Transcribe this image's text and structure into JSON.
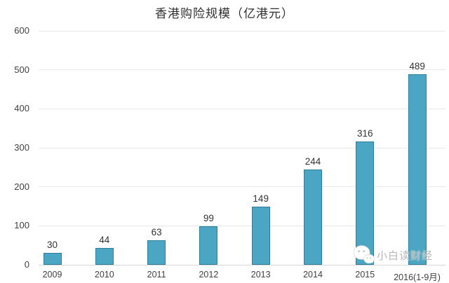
{
  "chart_data": {
    "type": "bar",
    "title": "香港购险规模（亿港元）",
    "categories": [
      "2009",
      "2010",
      "2011",
      "2012",
      "2013",
      "2014",
      "2015",
      "2016(1-9月)"
    ],
    "values": [
      30,
      44,
      63,
      99,
      149,
      244,
      316,
      489
    ],
    "xlabel": "",
    "ylabel": "",
    "ylim": [
      0,
      600
    ],
    "yticks": [
      0,
      100,
      200,
      300,
      400,
      500,
      600
    ],
    "grid": true,
    "legend": "none",
    "bar_fill_color": "#4aa6c3",
    "bar_border_color": "#2e7d9c",
    "gridline_color": "#e7e7e7",
    "baseline_color": "#d7d7d7",
    "value_label_color": "#333333",
    "tick_label_color": "#404040"
  },
  "watermark": {
    "text": "小白读财经",
    "icon": "wechat-icon",
    "color": "#b5b7b8"
  }
}
